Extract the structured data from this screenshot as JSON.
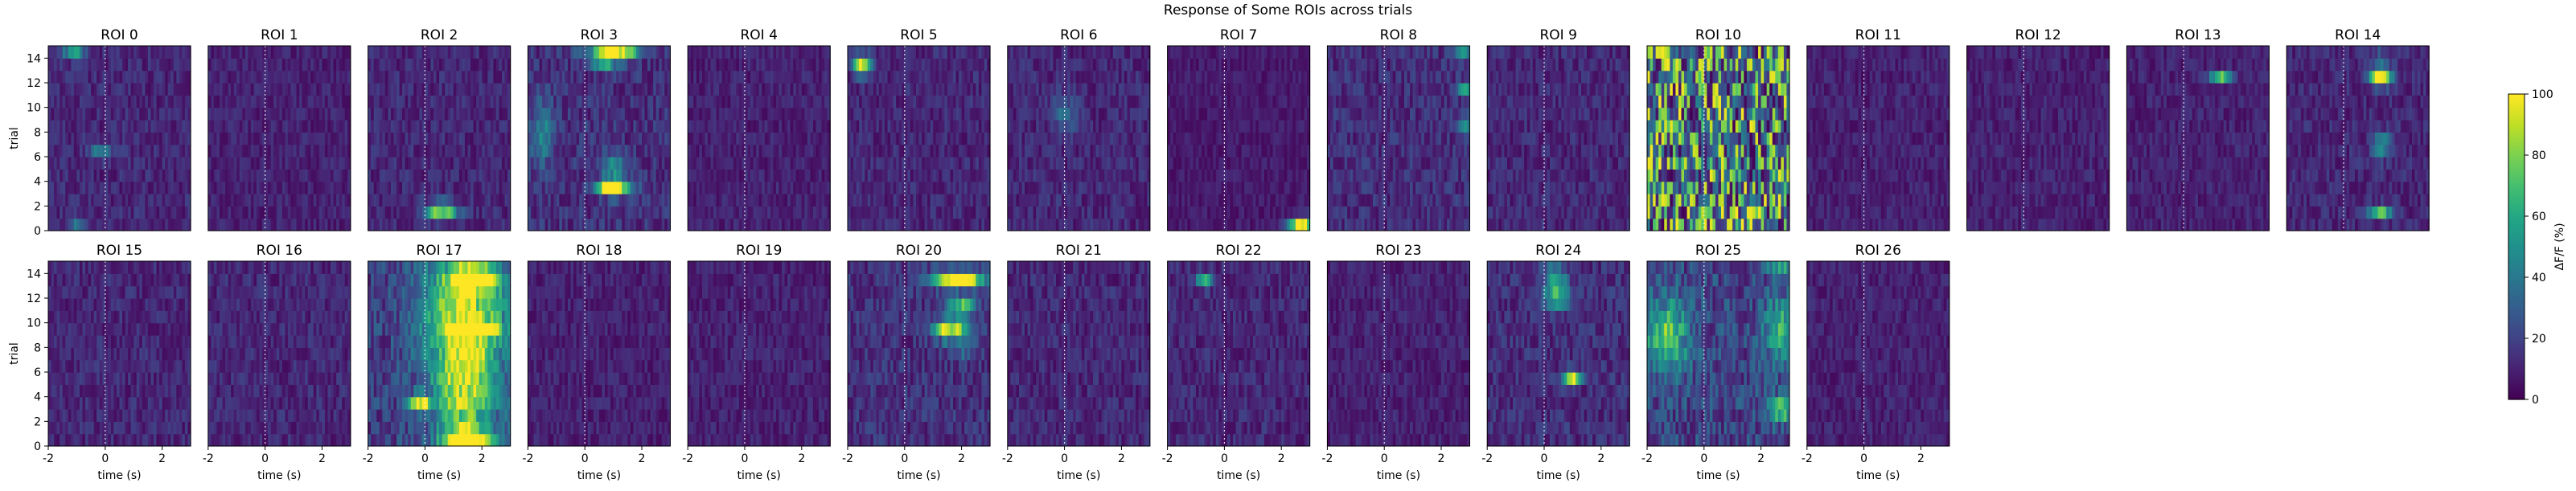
{
  "figure": {
    "title": "Response of Some ROIs across trials"
  },
  "colorbar": {
    "label": "ΔF/F (%)",
    "ticks": [
      0,
      20,
      40,
      60,
      80,
      100
    ],
    "range": [
      0,
      100
    ],
    "colormap": "viridis"
  },
  "chart_data": {
    "type": "heatmap",
    "title": "Response of Some ROIs across trials",
    "xlabel": "time (s)",
    "ylabel": "trial",
    "xlim": [
      -2,
      3
    ],
    "ylim": [
      0,
      15
    ],
    "xticks": [
      -2,
      0,
      2
    ],
    "yticks": [
      0,
      2,
      4,
      6,
      8,
      10,
      12,
      14
    ],
    "stimulus_onset": 0,
    "n_trials": 15,
    "value_range": [
      0,
      100
    ],
    "panels": [
      {
        "label": "ROI 0",
        "background": 12,
        "hotspots": [
          [
            -1.1,
            14.5,
            0.4,
            0.6,
            50
          ],
          [
            -0.2,
            6.5,
            0.4,
            0.6,
            35
          ],
          [
            -1.0,
            0.5,
            0.3,
            0.6,
            28
          ]
        ]
      },
      {
        "label": "ROI 1",
        "background": 10,
        "hotspots": []
      },
      {
        "label": "ROI 2",
        "background": 12,
        "hotspots": [
          [
            0.6,
            1.6,
            0.6,
            0.7,
            70
          ]
        ]
      },
      {
        "label": "ROI 3",
        "background": 15,
        "hotspots": [
          [
            1.0,
            14.5,
            0.8,
            0.6,
            100
          ],
          [
            0.7,
            13.4,
            0.4,
            0.5,
            45
          ],
          [
            1.0,
            3.5,
            0.6,
            0.6,
            95
          ],
          [
            -1.5,
            8.0,
            0.4,
            2.5,
            30
          ],
          [
            1.0,
            5.0,
            0.4,
            1.5,
            35
          ]
        ]
      },
      {
        "label": "ROI 4",
        "background": 10,
        "hotspots": []
      },
      {
        "label": "ROI 5",
        "background": 12,
        "hotspots": [
          [
            -1.5,
            13.5,
            0.3,
            0.8,
            85
          ]
        ]
      },
      {
        "label": "ROI 6",
        "background": 12,
        "hotspots": [
          [
            0.0,
            9.5,
            0.4,
            1.5,
            30
          ]
        ]
      },
      {
        "label": "ROI 7",
        "background": 8,
        "hotspots": [
          [
            2.7,
            0.5,
            0.45,
            0.6,
            100
          ]
        ]
      },
      {
        "label": "ROI 8",
        "background": 14,
        "hotspots": [
          [
            2.8,
            14.5,
            0.3,
            0.6,
            45
          ],
          [
            2.8,
            11.5,
            0.3,
            0.6,
            40
          ],
          [
            2.8,
            8.5,
            0.3,
            0.8,
            35
          ]
        ]
      },
      {
        "label": "ROI 9",
        "background": 12,
        "hotspots": []
      },
      {
        "label": "ROI 10",
        "background": 55,
        "noisy": true,
        "hotspots": []
      },
      {
        "label": "ROI 11",
        "background": 10,
        "hotspots": []
      },
      {
        "label": "ROI 12",
        "background": 10,
        "hotspots": []
      },
      {
        "label": "ROI 13",
        "background": 10,
        "hotspots": [
          [
            1.3,
            12.5,
            0.4,
            0.5,
            60
          ]
        ]
      },
      {
        "label": "ROI 14",
        "background": 12,
        "hotspots": [
          [
            1.3,
            12.5,
            0.4,
            0.7,
            100
          ],
          [
            1.3,
            14.0,
            0.3,
            0.5,
            40
          ],
          [
            1.3,
            7.0,
            0.3,
            1.0,
            45
          ],
          [
            1.3,
            1.5,
            0.4,
            0.6,
            60
          ]
        ]
      },
      {
        "label": "ROI 15",
        "background": 12,
        "hotspots": []
      },
      {
        "label": "ROI 16",
        "background": 12,
        "hotspots": []
      },
      {
        "label": "ROI 17",
        "background": 20,
        "hotspots": [
          [
            1.4,
            11.0,
            1.4,
            6.0,
            70
          ],
          [
            1.4,
            4.0,
            1.0,
            5.0,
            55
          ],
          [
            1.8,
            9.5,
            0.7,
            0.6,
            100
          ],
          [
            1.8,
            13.5,
            0.8,
            0.8,
            90
          ],
          [
            -0.2,
            3.5,
            0.4,
            0.6,
            85
          ],
          [
            1.5,
            0.6,
            0.8,
            0.8,
            90
          ]
        ]
      },
      {
        "label": "ROI 18",
        "background": 10,
        "hotspots": []
      },
      {
        "label": "ROI 19",
        "background": 10,
        "hotspots": []
      },
      {
        "label": "ROI 20",
        "background": 15,
        "hotspots": [
          [
            1.9,
            13.5,
            0.9,
            0.7,
            100
          ],
          [
            1.6,
            9.5,
            0.6,
            0.8,
            85
          ],
          [
            2.0,
            11.2,
            0.5,
            0.7,
            70
          ],
          [
            2.1,
            8.0,
            0.4,
            0.5,
            55
          ]
        ]
      },
      {
        "label": "ROI 21",
        "background": 12,
        "hotspots": []
      },
      {
        "label": "ROI 22",
        "background": 12,
        "hotspots": [
          [
            -0.7,
            13.5,
            0.3,
            0.6,
            55
          ]
        ]
      },
      {
        "label": "ROI 23",
        "background": 10,
        "hotspots": []
      },
      {
        "label": "ROI 24",
        "background": 14,
        "hotspots": [
          [
            0.4,
            13.5,
            0.4,
            1.5,
            40
          ],
          [
            1.0,
            5.5,
            0.3,
            0.6,
            85
          ],
          [
            0.5,
            12.0,
            0.5,
            1.0,
            35
          ]
        ]
      },
      {
        "label": "ROI 25",
        "background": 22,
        "hotspots": [
          [
            -1.3,
            9.0,
            0.8,
            3.0,
            50
          ],
          [
            2.7,
            3.0,
            0.5,
            1.0,
            60
          ],
          [
            2.7,
            14.5,
            0.4,
            0.6,
            40
          ],
          [
            2.6,
            9.5,
            0.5,
            2.5,
            45
          ]
        ]
      },
      {
        "label": "ROI 26",
        "background": 10,
        "hotspots": []
      }
    ]
  }
}
